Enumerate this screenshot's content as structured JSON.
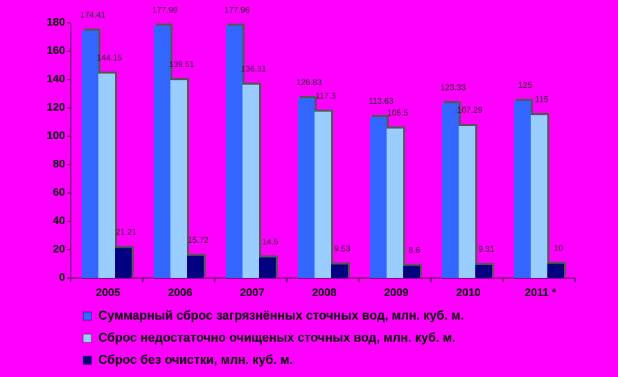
{
  "chart_data": {
    "type": "bar",
    "categories": [
      "2005",
      "2006",
      "2007",
      "2008",
      "2009",
      "2010",
      "2011 *"
    ],
    "series": [
      {
        "name": "Суммарный сброс загрязнённых сточных вод, млн. куб. м.",
        "color": "#3366ff",
        "values": [
          174.41,
          177.99,
          177.96,
          126.83,
          113.63,
          123.33,
          125
        ]
      },
      {
        "name": "Сброс недостаточно очищеных сточных вод, млн. куб. м.",
        "color": "#99ccff",
        "values": [
          144.15,
          139.51,
          136.31,
          117.3,
          105.5,
          107.29,
          115
        ]
      },
      {
        "name": "Сброс без очистки, млн. куб. м.",
        "color": "#000080",
        "values": [
          21.21,
          15.72,
          14.5,
          9.53,
          8.6,
          9.31,
          10
        ]
      }
    ],
    "ylim": [
      0,
      180
    ],
    "yticks": [
      0,
      20,
      40,
      60,
      80,
      100,
      120,
      140,
      160,
      180
    ],
    "legend": "bottom"
  }
}
